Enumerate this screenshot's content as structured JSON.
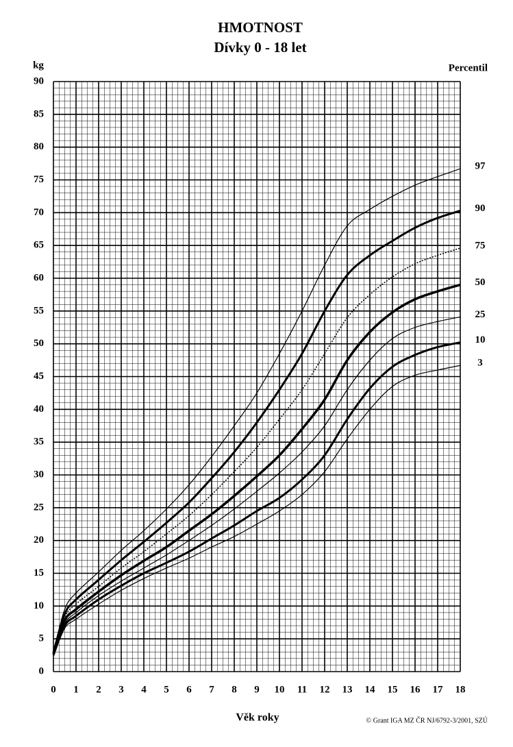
{
  "chart_data": {
    "type": "line",
    "title": "HMOTNOST",
    "subtitle": "Dívky 0 - 18 let",
    "y_label": "kg",
    "legend_title": "Percentil",
    "x_label": "Věk roky",
    "credit": "© Grant IGA MZ ČR NJ/6792-3/2001, SZÚ",
    "x": [
      0,
      0.5,
      1,
      2,
      3,
      4,
      5,
      6,
      7,
      8,
      9,
      10,
      11,
      12,
      13,
      14,
      15,
      16,
      17,
      18
    ],
    "series": [
      {
        "name": "97",
        "color": "#000000",
        "width": 1.2,
        "style": "solid",
        "values": [
          3,
          9.5,
          12,
          15.2,
          18.5,
          21.5,
          24.8,
          28.5,
          32.8,
          37.5,
          42.5,
          48.5,
          55,
          62,
          68,
          70.5,
          72.5,
          74.2,
          75.5,
          76.7
        ]
      },
      {
        "name": "90",
        "color": "#000000",
        "width": 3,
        "style": "solid",
        "values": [
          2.9,
          8.8,
          11,
          14,
          17,
          19.8,
          22.7,
          25.8,
          29.5,
          33.5,
          38,
          43,
          48.5,
          55,
          60.5,
          63.5,
          65.7,
          67.7,
          69.2,
          70.3
        ]
      },
      {
        "name": "75",
        "color": "#000000",
        "width": 1.6,
        "style": "dotted",
        "values": [
          2.8,
          8.3,
          10.3,
          13,
          15.8,
          18.3,
          21,
          23.8,
          27,
          30.5,
          34.2,
          38.5,
          43,
          48.5,
          54,
          57.5,
          60.2,
          62.2,
          63.5,
          64.6
        ]
      },
      {
        "name": "50",
        "color": "#000000",
        "width": 3.5,
        "style": "solid",
        "values": [
          2.7,
          7.8,
          9.5,
          12.2,
          14.7,
          16.9,
          19,
          21.5,
          24,
          26.8,
          29.8,
          33,
          37,
          41.5,
          47.5,
          51.8,
          54.8,
          56.8,
          58,
          59
        ]
      },
      {
        "name": "25",
        "color": "#000000",
        "width": 1.2,
        "style": "solid",
        "values": [
          2.6,
          7.3,
          9,
          11.6,
          13.8,
          15.8,
          17.8,
          20,
          22.3,
          24.8,
          27.5,
          30.3,
          33.5,
          37.5,
          43,
          47.5,
          50.8,
          52.5,
          53.4,
          54.1
        ]
      },
      {
        "name": "10",
        "color": "#000000",
        "width": 3,
        "style": "solid",
        "values": [
          2.5,
          7,
          8.5,
          11,
          13.1,
          15,
          16.6,
          18.3,
          20.3,
          22.3,
          24.5,
          26.5,
          29.3,
          33,
          38.5,
          43.2,
          46.5,
          48.3,
          49.5,
          50.2
        ]
      },
      {
        "name": "3",
        "color": "#000000",
        "width": 1.2,
        "style": "solid",
        "values": [
          2.4,
          6.6,
          8,
          10.3,
          12.4,
          14.2,
          15.8,
          17.3,
          19,
          20.6,
          22.5,
          24.5,
          27,
          30.5,
          35.5,
          40,
          43.5,
          45.2,
          46,
          46.7
        ]
      }
    ],
    "xlim": [
      0,
      18
    ],
    "ylim": [
      0,
      90
    ],
    "xticks": [
      0,
      1,
      2,
      3,
      4,
      5,
      6,
      7,
      8,
      9,
      10,
      11,
      12,
      13,
      14,
      15,
      16,
      17,
      18
    ],
    "yticks": [
      0,
      5,
      10,
      15,
      20,
      25,
      30,
      35,
      40,
      45,
      50,
      55,
      60,
      65,
      70,
      75,
      80,
      85,
      90
    ],
    "x_minor": 0.25,
    "y_minor": 1,
    "grid": true
  }
}
